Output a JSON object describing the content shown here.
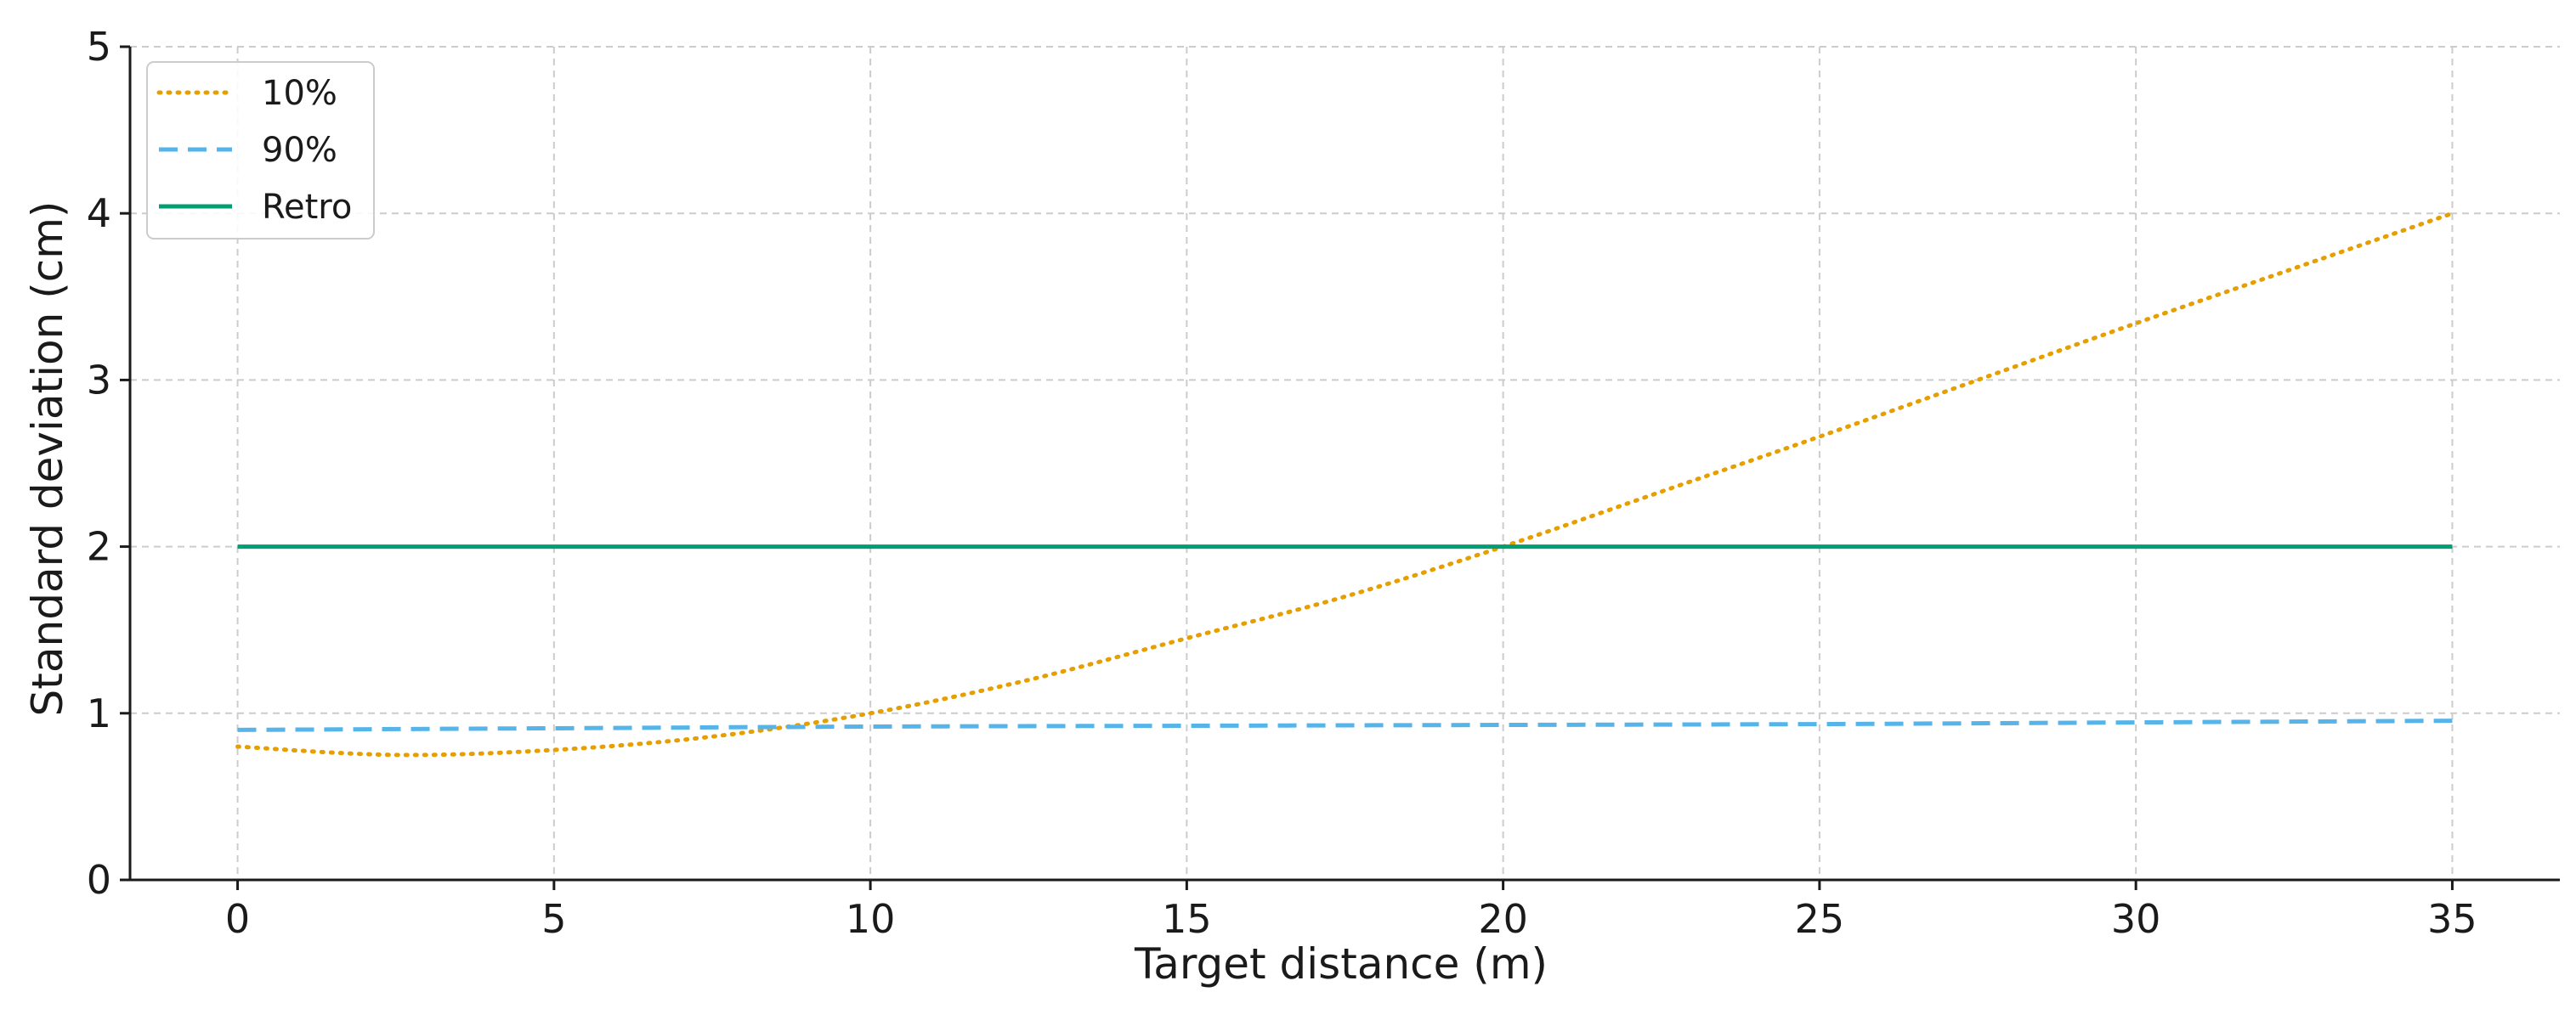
{
  "chart_data": {
    "type": "line",
    "xlabel": "Target distance (m)",
    "ylabel": "Standard deviation (cm)",
    "xlim": [
      -1.7,
      36.7
    ],
    "ylim": [
      0,
      5
    ],
    "x_ticks": [
      0,
      5,
      10,
      15,
      20,
      25,
      30,
      35
    ],
    "y_ticks": [
      0,
      1,
      2,
      3,
      4,
      5
    ],
    "grid": true,
    "legend_position": "top-left",
    "series": [
      {
        "name": "10%",
        "style": "dotted",
        "color": "#E69F00",
        "x": [
          0,
          2.5,
          5,
          7.5,
          10,
          12.5,
          15,
          17.5,
          20,
          22.5,
          25,
          27.5,
          30,
          32.5,
          35
        ],
        "y": [
          0.8,
          0.75,
          0.78,
          0.86,
          1.0,
          1.2,
          1.45,
          1.7,
          2.0,
          2.33,
          2.66,
          3.0,
          3.34,
          3.67,
          4.0
        ]
      },
      {
        "name": "90%",
        "style": "dashed",
        "color": "#56B4E9",
        "x": [
          0,
          5,
          10,
          15,
          20,
          25,
          30,
          35
        ],
        "y": [
          0.9,
          0.91,
          0.92,
          0.925,
          0.93,
          0.935,
          0.945,
          0.955
        ]
      },
      {
        "name": "Retro",
        "style": "solid",
        "color": "#009E73",
        "x": [
          0,
          35
        ],
        "y": [
          2.0,
          2.0
        ]
      }
    ]
  }
}
